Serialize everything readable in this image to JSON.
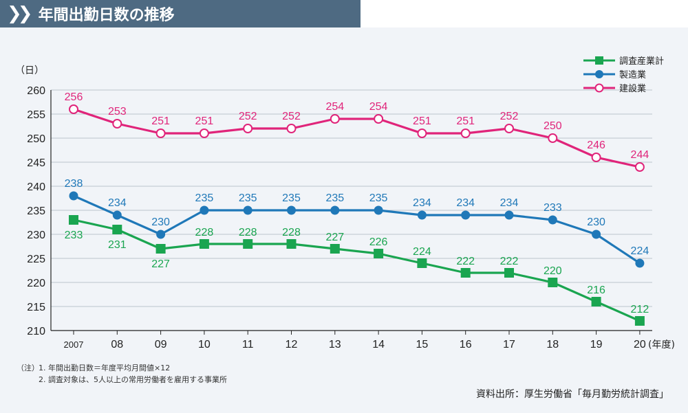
{
  "header": {
    "title": "年間出勤日数の推移",
    "icon": "double-chevron-right-icon"
  },
  "chart_data": {
    "type": "line",
    "ylabel": "（日）",
    "xlabel": "(年度)",
    "ylim": [
      210,
      260
    ],
    "yticks": [
      210,
      215,
      220,
      225,
      230,
      235,
      240,
      245,
      250,
      255,
      260
    ],
    "categories": [
      "2007",
      "08",
      "09",
      "10",
      "11",
      "12",
      "13",
      "14",
      "15",
      "16",
      "17",
      "18",
      "19",
      "20"
    ],
    "grid": true,
    "legend_position": "top-right",
    "series": [
      {
        "name": "調査産業計",
        "color": "#1aa550",
        "marker": "square",
        "values": [
          233,
          231,
          227,
          228,
          228,
          228,
          227,
          226,
          224,
          222,
          222,
          220,
          216,
          212
        ]
      },
      {
        "name": "製造業",
        "color": "#1f78b8",
        "marker": "circle",
        "values": [
          238,
          234,
          230,
          235,
          235,
          235,
          235,
          235,
          234,
          234,
          234,
          233,
          230,
          224
        ]
      },
      {
        "name": "建設業",
        "color": "#e0247a",
        "marker": "open-circle",
        "values": [
          256,
          253,
          251,
          251,
          252,
          252,
          254,
          254,
          251,
          251,
          252,
          250,
          246,
          244
        ]
      }
    ]
  },
  "notes": {
    "lead": "（注）",
    "line1": "1. 年間出勤日数＝年度平均月間値×12",
    "line2": "2. 調査対象は、5人以上の常用労働者を雇用する事業所"
  },
  "source": "資料出所：厚生労働省「毎月勤労統計調査」"
}
